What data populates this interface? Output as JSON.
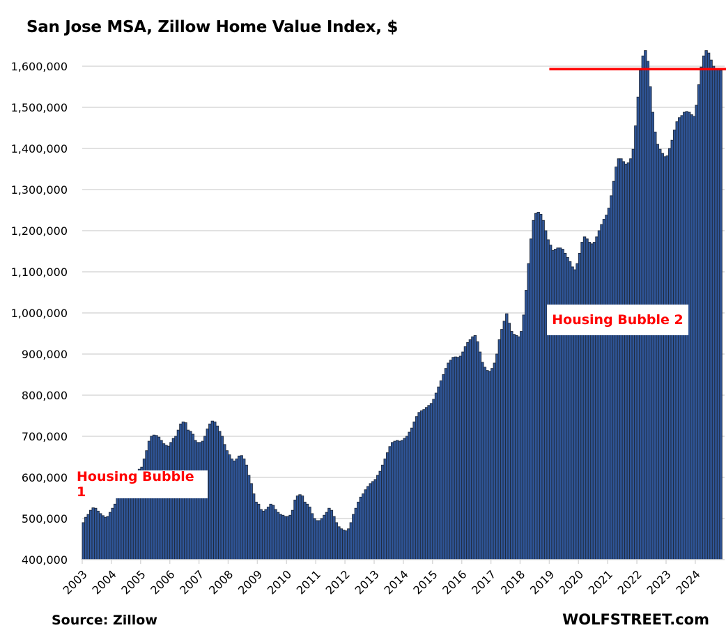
{
  "chart_data": {
    "type": "bar",
    "title": "San Jose MSA, Zillow Home Value Index, $",
    "xlabel": "",
    "ylabel": "",
    "frequency": "monthly",
    "start": "2003-01",
    "ylim": [
      400000,
      1650000
    ],
    "yticks": [
      400000,
      500000,
      600000,
      700000,
      800000,
      900000,
      1000000,
      1100000,
      1200000,
      1300000,
      1400000,
      1500000,
      1600000
    ],
    "ytick_labels": [
      "400,000",
      "500,000",
      "600,000",
      "700,000",
      "800,000",
      "900,000",
      "1,000,000",
      "1,100,000",
      "1,200,000",
      "1,300,000",
      "1,400,000",
      "1,500,000",
      "1,600,000"
    ],
    "xtick_labels": [
      "2003",
      "2004",
      "2005",
      "2006",
      "2007",
      "2008",
      "2009",
      "2010",
      "2011",
      "2012",
      "2013",
      "2014",
      "2015",
      "2016",
      "2017",
      "2018",
      "2019",
      "2020",
      "2021",
      "2022",
      "2023",
      "2024"
    ],
    "grid": true,
    "legend": "none",
    "series": [
      {
        "name": "Zillow Home Value Index",
        "color": "#2f5597",
        "values_by_year": {
          "2003": [
            490000,
            503000,
            510000,
            520000,
            526000,
            525000,
            518000,
            512000,
            507000,
            503000,
            505000,
            515000
          ],
          "2004": [
            525000,
            535000,
            550000,
            565000,
            575000,
            585000,
            590000,
            600000,
            605000,
            610000,
            615000,
            620000
          ],
          "2005": [
            625000,
            645000,
            665000,
            688000,
            700000,
            703000,
            702000,
            698000,
            690000,
            682000,
            678000,
            676000
          ],
          "2006": [
            685000,
            695000,
            700000,
            715000,
            730000,
            735000,
            733000,
            715000,
            712000,
            705000,
            690000,
            685000
          ],
          "2007": [
            685000,
            688000,
            700000,
            718000,
            730000,
            737000,
            735000,
            725000,
            712000,
            700000,
            680000,
            665000
          ],
          "2008": [
            655000,
            645000,
            640000,
            645000,
            652000,
            653000,
            645000,
            630000,
            605000,
            585000,
            560000,
            540000
          ],
          "2009": [
            535000,
            522000,
            518000,
            522000,
            528000,
            535000,
            532000,
            522000,
            515000,
            510000,
            508000,
            505000
          ],
          "2010": [
            505000,
            508000,
            520000,
            545000,
            555000,
            558000,
            555000,
            540000,
            535000,
            528000,
            512000,
            500000
          ],
          "2011": [
            495000,
            495000,
            500000,
            508000,
            515000,
            525000,
            520000,
            505000,
            490000,
            480000,
            475000,
            472000
          ],
          "2012": [
            470000,
            475000,
            490000,
            510000,
            525000,
            540000,
            552000,
            560000,
            570000,
            578000,
            585000,
            590000
          ],
          "2013": [
            595000,
            605000,
            615000,
            630000,
            645000,
            660000,
            675000,
            685000,
            688000,
            690000,
            688000,
            690000
          ],
          "2014": [
            695000,
            700000,
            710000,
            720000,
            735000,
            748000,
            758000,
            762000,
            765000,
            770000,
            775000,
            780000
          ],
          "2015": [
            790000,
            805000,
            820000,
            835000,
            850000,
            865000,
            878000,
            885000,
            892000,
            893000,
            892000,
            895000
          ],
          "2016": [
            905000,
            918000,
            928000,
            935000,
            942000,
            945000,
            930000,
            905000,
            880000,
            868000,
            860000,
            858000
          ],
          "2017": [
            865000,
            878000,
            900000,
            935000,
            960000,
            980000,
            998000,
            975000,
            955000,
            948000,
            945000,
            942000
          ],
          "2018": [
            955000,
            995000,
            1055000,
            1120000,
            1180000,
            1225000,
            1242000,
            1245000,
            1240000,
            1225000,
            1200000,
            1178000
          ],
          "2019": [
            1165000,
            1152000,
            1155000,
            1158000,
            1158000,
            1155000,
            1145000,
            1135000,
            1125000,
            1112000,
            1105000,
            1120000
          ],
          "2020": [
            1145000,
            1172000,
            1185000,
            1180000,
            1172000,
            1168000,
            1172000,
            1185000,
            1200000,
            1215000,
            1228000,
            1238000
          ],
          "2021": [
            1255000,
            1285000,
            1320000,
            1355000,
            1375000,
            1375000,
            1368000,
            1362000,
            1365000,
            1375000,
            1398000,
            1455000
          ],
          "2022": [
            1525000,
            1590000,
            1625000,
            1638000,
            1612000,
            1550000,
            1488000,
            1440000,
            1410000,
            1398000,
            1388000,
            1380000
          ],
          "2023": [
            1382000,
            1400000,
            1420000,
            1445000,
            1465000,
            1475000,
            1480000,
            1488000,
            1490000,
            1488000,
            1482000,
            1478000
          ],
          "2024": [
            1505000,
            1555000,
            1598000,
            1625000,
            1638000,
            1632000,
            1615000,
            1600000,
            1595000,
            1592000,
            1590000
          ]
        }
      }
    ],
    "reference_line": {
      "value": 1593000,
      "from": "2019-01",
      "color": "#ff0000"
    },
    "annotations": [
      "Housing Bubble 1",
      "Housing Bubble 2"
    ],
    "annotation_color": "#ff0000"
  },
  "footer": {
    "source": "Source: Zillow",
    "brand": "WOLFSTREET.com"
  }
}
